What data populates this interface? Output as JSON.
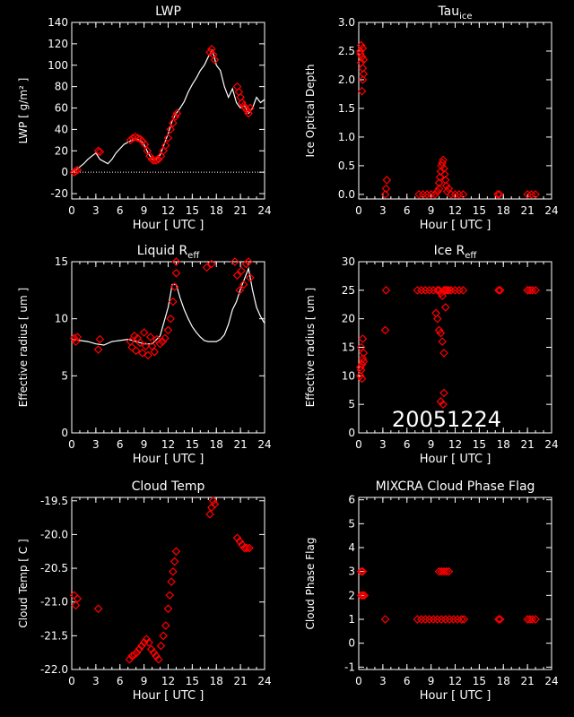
{
  "date_label": "20051224",
  "chart_data": [
    {
      "id": "lwp",
      "type": "line",
      "title": "LWP",
      "title_sub": "",
      "xlabel": "Hour [ UTC ]",
      "ylabel": "LWP [ g/m² ]",
      "xlim": [
        0,
        24
      ],
      "ylim": [
        -25,
        140
      ],
      "xticks": [
        "0",
        "3",
        "6",
        "9",
        "12",
        "15",
        "18",
        "21",
        "24"
      ],
      "yticks": [
        "-20",
        "0",
        "20",
        "40",
        "60",
        "80",
        "100",
        "120",
        "140"
      ],
      "zero_line": true,
      "series": [
        {
          "style": "line",
          "color": "#ffffff",
          "x": [
            0,
            0.5,
            1,
            1.5,
            2,
            2.5,
            3,
            3.5,
            4,
            4.5,
            5,
            5.5,
            6,
            6.5,
            7,
            7.5,
            8,
            8.5,
            9,
            9.5,
            10,
            10.5,
            11,
            11.5,
            12,
            12.5,
            13,
            13.5,
            14,
            14.5,
            15,
            15.5,
            16,
            16.5,
            17,
            17.5,
            18,
            18.5,
            19,
            19.5,
            20,
            20.5,
            21,
            21.5,
            22,
            22.5,
            23,
            23.5,
            24
          ],
          "y": [
            0,
            2,
            5,
            8,
            12,
            15,
            18,
            12,
            10,
            8,
            12,
            18,
            22,
            26,
            28,
            30,
            31,
            30,
            26,
            18,
            12,
            12,
            16,
            26,
            36,
            48,
            55,
            60,
            66,
            75,
            82,
            88,
            95,
            100,
            108,
            114,
            100,
            95,
            80,
            70,
            78,
            65,
            60,
            62,
            55,
            60,
            70,
            65,
            68
          ]
        },
        {
          "style": "markers",
          "color": "#ff0000",
          "x": [
            0.3,
            0.5,
            0.7,
            3.3,
            3.5,
            7.3,
            7.6,
            7.9,
            8.2,
            8.5,
            8.8,
            9.1,
            9.4,
            9.7,
            10,
            10.2,
            10.5,
            10.8,
            11.1,
            11.4,
            11.7,
            12.0,
            12.3,
            12.6,
            12.9,
            13.1,
            17.2,
            17.4,
            17.6,
            17.8,
            20.6,
            20.8,
            21.0,
            21.2,
            21.4,
            21.6,
            21.8,
            22.0,
            22.2
          ],
          "y": [
            0,
            1,
            2,
            20,
            19,
            30,
            32,
            33,
            32,
            31,
            29,
            26,
            20,
            15,
            12,
            11,
            11,
            12,
            15,
            20,
            25,
            32,
            40,
            46,
            52,
            55,
            112,
            115,
            110,
            105,
            80,
            75,
            70,
            65,
            62,
            60,
            58,
            55,
            60
          ]
        }
      ]
    },
    {
      "id": "tauice",
      "type": "scatter",
      "title": "Tau",
      "title_sub": "ice",
      "xlabel": "Hour [ UTC ]",
      "ylabel": "Ice Optical Depth",
      "xlim": [
        0,
        24
      ],
      "ylim": [
        -0.08,
        3.0
      ],
      "xticks": [
        "0",
        "3",
        "6",
        "9",
        "12",
        "15",
        "18",
        "21",
        "24"
      ],
      "yticks": [
        "0.0",
        "0.5",
        "1.0",
        "1.5",
        "2.0",
        "2.5",
        "3.0"
      ],
      "series": [
        {
          "style": "markers",
          "color": "#ff0000",
          "x": [
            0.2,
            0.3,
            0.4,
            0.5,
            0.6,
            0.3,
            0.5,
            0.4,
            0.6,
            0.2,
            0.5,
            3.3,
            3.4,
            3.5,
            7.5,
            8,
            8.5,
            9,
            9.5,
            9.8,
            10,
            10,
            10.1,
            10.2,
            10.3,
            10.4,
            10.5,
            10.6,
            10.7,
            10.8,
            10.9,
            11,
            11.2,
            11.5,
            12,
            12.5,
            13,
            17.3,
            17.5,
            21,
            21.5,
            22
          ],
          "y": [
            2.5,
            2.3,
            2.4,
            2.2,
            2.1,
            2.6,
            2.0,
            1.8,
            2.35,
            2.45,
            2.55,
            0.0,
            0.1,
            0.25,
            0.0,
            0.0,
            0.0,
            0.0,
            0.0,
            0.05,
            0.1,
            0.2,
            0.3,
            0.4,
            0.5,
            0.55,
            0.6,
            0.45,
            0.35,
            0.25,
            0.15,
            0.05,
            0.1,
            0.0,
            0.0,
            0.0,
            0.0,
            0.0,
            0.0,
            0.0,
            0.0,
            0.0
          ]
        }
      ]
    },
    {
      "id": "liqreff",
      "type": "line",
      "title": "Liquid R",
      "title_sub": "eff",
      "xlabel": "Hour [ UTC ]",
      "ylabel": "Effective radius [ um ]",
      "xlim": [
        0,
        24
      ],
      "ylim": [
        0,
        15
      ],
      "xticks": [
        "0",
        "3",
        "6",
        "9",
        "12",
        "15",
        "18",
        "21",
        "24"
      ],
      "yticks": [
        "0",
        "5",
        "10",
        "15"
      ],
      "series": [
        {
          "style": "line",
          "color": "#ffffff",
          "x": [
            0,
            1,
            2,
            3,
            4,
            5,
            6,
            7,
            8,
            9,
            10,
            11,
            12,
            12.5,
            13,
            13.5,
            14,
            14.5,
            15,
            15.5,
            16,
            16.5,
            17,
            17.5,
            18,
            18.5,
            19,
            19.5,
            20,
            20.5,
            21,
            21.5,
            22,
            22.5,
            23,
            23.5,
            24
          ],
          "y": [
            8.2,
            8.1,
            8.0,
            7.8,
            7.7,
            8.0,
            8.1,
            8.2,
            8.0,
            7.8,
            7.8,
            8.5,
            11.0,
            13.0,
            13.0,
            11.8,
            10.8,
            10.0,
            9.3,
            8.8,
            8.4,
            8.1,
            8.0,
            8.0,
            8.0,
            8.2,
            8.6,
            9.5,
            10.8,
            11.5,
            12.6,
            13.5,
            14.4,
            12.5,
            11.0,
            10.2,
            9.6
          ]
        },
        {
          "style": "markers",
          "color": "#ff0000",
          "x": [
            0.3,
            0.5,
            0.7,
            3.3,
            3.5,
            7.3,
            7.5,
            7.8,
            8.0,
            8.2,
            8.5,
            8.8,
            9.0,
            9.2,
            9.5,
            9.8,
            10.0,
            10.3,
            10.6,
            11.0,
            11.3,
            11.6,
            12.0,
            12.3,
            12.6,
            12.8,
            13.0,
            13.0,
            16.8,
            17.4,
            20.3,
            20.6,
            20.9,
            21.1,
            21.4,
            21.7,
            22.0,
            22.2
          ],
          "y": [
            8.3,
            8.0,
            8.4,
            7.3,
            8.2,
            8.0,
            7.5,
            8.5,
            7.2,
            8.3,
            7.9,
            7.0,
            8.8,
            7.6,
            6.8,
            8.4,
            7.6,
            7.1,
            8.2,
            7.8,
            8.0,
            8.3,
            9.0,
            10.0,
            11.5,
            12.8,
            14.0,
            15.0,
            14.5,
            14.8,
            15.0,
            13.8,
            12.5,
            14.2,
            13.0,
            14.8,
            15.0,
            13.6
          ]
        }
      ]
    },
    {
      "id": "icereff",
      "type": "scatter",
      "title": "Ice R",
      "title_sub": "eff",
      "xlabel": "Hour [ UTC ]",
      "ylabel": "Effective radius [ um ]",
      "xlim": [
        0,
        24
      ],
      "ylim": [
        0,
        30
      ],
      "xticks": [
        "0",
        "3",
        "6",
        "9",
        "12",
        "15",
        "18",
        "21",
        "24"
      ],
      "yticks": [
        "0",
        "5",
        "10",
        "15",
        "20",
        "25",
        "30"
      ],
      "series": [
        {
          "style": "markers",
          "color": "#ff0000",
          "x": [
            0.2,
            0.3,
            0.4,
            0.5,
            0.6,
            0.3,
            0.5,
            0.4,
            0.6,
            0.2,
            3.3,
            3.4,
            7.3,
            7.8,
            8.3,
            8.8,
            9.3,
            9.8,
            10,
            10.2,
            10.4,
            10.6,
            10.8,
            11,
            11.2,
            11.5,
            12,
            12.5,
            13,
            9.6,
            9.8,
            10,
            10.2,
            10.4,
            10.6,
            10.8,
            10.5,
            10.2,
            10.6,
            17.4,
            17.6,
            21,
            21.3,
            21.6,
            22
          ],
          "y": [
            10,
            11,
            12,
            13,
            14,
            15,
            16.5,
            9.5,
            12.5,
            11.5,
            18,
            25,
            25,
            25,
            25,
            25,
            25,
            25,
            25,
            24.5,
            24,
            25,
            25,
            25,
            25,
            25,
            25,
            25,
            25,
            21,
            20,
            18,
            17.5,
            16,
            14,
            22,
            5,
            5.5,
            7,
            25,
            25,
            25,
            25,
            25,
            25
          ]
        }
      ]
    },
    {
      "id": "cloudtemp",
      "type": "scatter",
      "title": "Cloud Temp",
      "title_sub": "",
      "xlabel": "Hour [ UTC ]",
      "ylabel": "Cloud Temp [ C ]",
      "xlim": [
        0,
        24
      ],
      "ylim": [
        -22.0,
        -19.45
      ],
      "xticks": [
        "0",
        "3",
        "6",
        "9",
        "12",
        "15",
        "18",
        "21",
        "24"
      ],
      "yticks": [
        "-22.0",
        "-21.5",
        "-21.0",
        "-20.5",
        "-20.0",
        "-19.5"
      ],
      "series": [
        {
          "style": "markers",
          "color": "#ff0000",
          "x": [
            0.3,
            0.5,
            0.7,
            3.3,
            7.2,
            7.5,
            7.8,
            8.1,
            8.4,
            8.7,
            9.0,
            9.3,
            9.6,
            9.9,
            10.2,
            10.5,
            10.8,
            11.1,
            11.4,
            11.7,
            12.0,
            12.2,
            12.4,
            12.6,
            12.8,
            13.0,
            17.2,
            17.4,
            17.6,
            17.8,
            20.6,
            20.9,
            21.2,
            21.5,
            21.8,
            22.1
          ],
          "y": [
            -20.9,
            -21.05,
            -20.95,
            -21.1,
            -21.85,
            -21.8,
            -21.78,
            -21.75,
            -21.7,
            -21.65,
            -21.6,
            -21.55,
            -21.6,
            -21.7,
            -21.75,
            -21.8,
            -21.85,
            -21.65,
            -21.5,
            -21.35,
            -21.1,
            -20.9,
            -20.7,
            -20.55,
            -20.4,
            -20.25,
            -19.7,
            -19.6,
            -19.5,
            -19.55,
            -20.05,
            -20.1,
            -20.15,
            -20.2,
            -20.2,
            -20.2
          ]
        }
      ]
    },
    {
      "id": "phaseflag",
      "type": "scatter",
      "title": "MIXCRA Cloud Phase Flag",
      "title_sub": "",
      "xlabel": "Hour [ UTC ]",
      "ylabel": "Cloud Phase Flag",
      "xlim": [
        0,
        24
      ],
      "ylim": [
        -1.1,
        6.1
      ],
      "xticks": [
        "0",
        "3",
        "6",
        "9",
        "12",
        "15",
        "18",
        "21",
        "24"
      ],
      "yticks": [
        "-1",
        "0",
        "1",
        "2",
        "3",
        "4",
        "5",
        "6"
      ],
      "series": [
        {
          "style": "markers",
          "color": "#ff0000",
          "x": [
            0.3,
            0.5,
            0.7,
            0.3,
            0.5,
            3.3,
            7.3,
            7.8,
            8.3,
            8.8,
            9.3,
            9.8,
            10.3,
            10.8,
            11.3,
            11.8,
            12.3,
            12.8,
            13.1,
            10,
            10.3,
            10.6,
            10.9,
            11.2,
            17.4,
            17.6,
            21,
            21.3,
            21.6,
            22
          ],
          "y": [
            2,
            2,
            2,
            3,
            3,
            1,
            1,
            1,
            1,
            1,
            1,
            1,
            1,
            1,
            1,
            1,
            1,
            1,
            1,
            3,
            3,
            3,
            3,
            3,
            1,
            1,
            1,
            1,
            1,
            1
          ]
        }
      ]
    }
  ]
}
